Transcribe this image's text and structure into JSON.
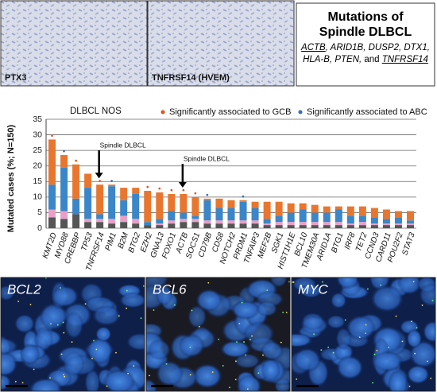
{
  "panels": {
    "top_images": [
      "PTX3",
      "TNFRSF14 (HVEM)"
    ],
    "box_title": "Mutations of Spindle DLBCL",
    "box_genes": [
      {
        "text": "ACTB",
        "underline": true
      },
      {
        "text": ", ARID1B, DUSP2, DTX1, HLA-B, PTEN, ",
        "underline": false
      },
      {
        "text": "and ",
        "upright": true,
        "underline": false
      },
      {
        "text": "TNFRSF14",
        "underline": true
      }
    ],
    "bottom_images": [
      "BCL2",
      "BCL6",
      "MYC"
    ]
  },
  "chart_data": {
    "type": "bar",
    "stacked": true,
    "subtitle": "DLBCL NOS",
    "ylabel": "Mutated cases (%; N=150)",
    "categories": [
      "KMT2D",
      "MYD88",
      "CREBBP",
      "TP53",
      "TNFRSF14",
      "PIM1",
      "B2M",
      "BTG2",
      "EZH2",
      "GNA13",
      "FOXO1",
      "ACTB",
      "SOCS1",
      "CD79B",
      "CD58",
      "NOTCH2",
      "PRDM1",
      "TNFAIP3",
      "MEF2B",
      "SGK1",
      "HIST1H1E",
      "BCL10",
      "TMEM30A",
      "ARID1A",
      "BTG1",
      "IRF8",
      "TET2",
      "CCND3",
      "CARD11",
      "POU2F2",
      "STAT3"
    ],
    "series": [
      {
        "color": "#555555",
        "values": [
          3.5,
          3,
          4.5,
          2,
          2,
          1.5,
          2,
          1.5,
          1,
          1,
          1.5,
          2,
          2,
          1.5,
          1.5,
          1.5,
          1.5,
          1.5,
          1,
          1,
          1,
          1,
          1,
          1,
          1,
          1,
          1,
          1,
          1,
          1,
          1
        ]
      },
      {
        "color": "#e8a0c8",
        "values": [
          2.5,
          2.5,
          0,
          1,
          1,
          1.5,
          2,
          1.5,
          0,
          0.5,
          1,
          1,
          1,
          1,
          1,
          1,
          1,
          1,
          0.5,
          1,
          1,
          1,
          1,
          1,
          1,
          0.5,
          1,
          0.5,
          0.5,
          0.5,
          0.5
        ]
      },
      {
        "color": "#3a86c8",
        "values": [
          8,
          14,
          5,
          10,
          1.5,
          10.5,
          5,
          8,
          1,
          1.5,
          3,
          2,
          1,
          6.5,
          4,
          4,
          6,
          4,
          1.5,
          2,
          3,
          4,
          3,
          3,
          4,
          2.5,
          2,
          2,
          1.5,
          2,
          1
        ]
      },
      {
        "color": "#e8762e",
        "values": [
          14.5,
          4,
          11,
          4.5,
          9.5,
          0.5,
          4,
          2,
          10,
          8.5,
          5.5,
          6,
          6,
          0.5,
          3,
          2.5,
          0.5,
          2,
          5.5,
          4.5,
          3,
          2,
          2.5,
          2,
          1,
          3,
          3,
          3,
          3,
          2,
          3
        ]
      }
    ],
    "markers": [
      {
        "name": "Significantly associated to GCB",
        "color": "#e05020",
        "flags": [
          1,
          0,
          1,
          0,
          1,
          0,
          0,
          0,
          1,
          1,
          1,
          1,
          1,
          0,
          0,
          0,
          0,
          0,
          0,
          0,
          0,
          0,
          0,
          0,
          0,
          0,
          0,
          0,
          0,
          0,
          0
        ]
      },
      {
        "name": "Significantly associated to ABC",
        "color": "#2f6fb5",
        "flags": [
          0,
          1,
          0,
          0,
          0,
          1,
          0,
          0,
          0,
          0,
          0,
          0,
          0,
          1,
          0,
          0,
          1,
          0,
          0,
          0,
          0,
          0,
          0,
          0,
          0,
          0,
          0,
          0,
          0,
          0,
          0
        ]
      }
    ],
    "annotations": [
      {
        "text": "Spindle DLBCL",
        "category": "TNFRSF14"
      },
      {
        "text": "Spindle DLBCL",
        "category": "ACTB"
      }
    ],
    "ylim": [
      0,
      35
    ],
    "yticks": [
      0,
      5,
      10,
      15,
      20,
      25,
      30,
      35
    ],
    "grid": true
  }
}
